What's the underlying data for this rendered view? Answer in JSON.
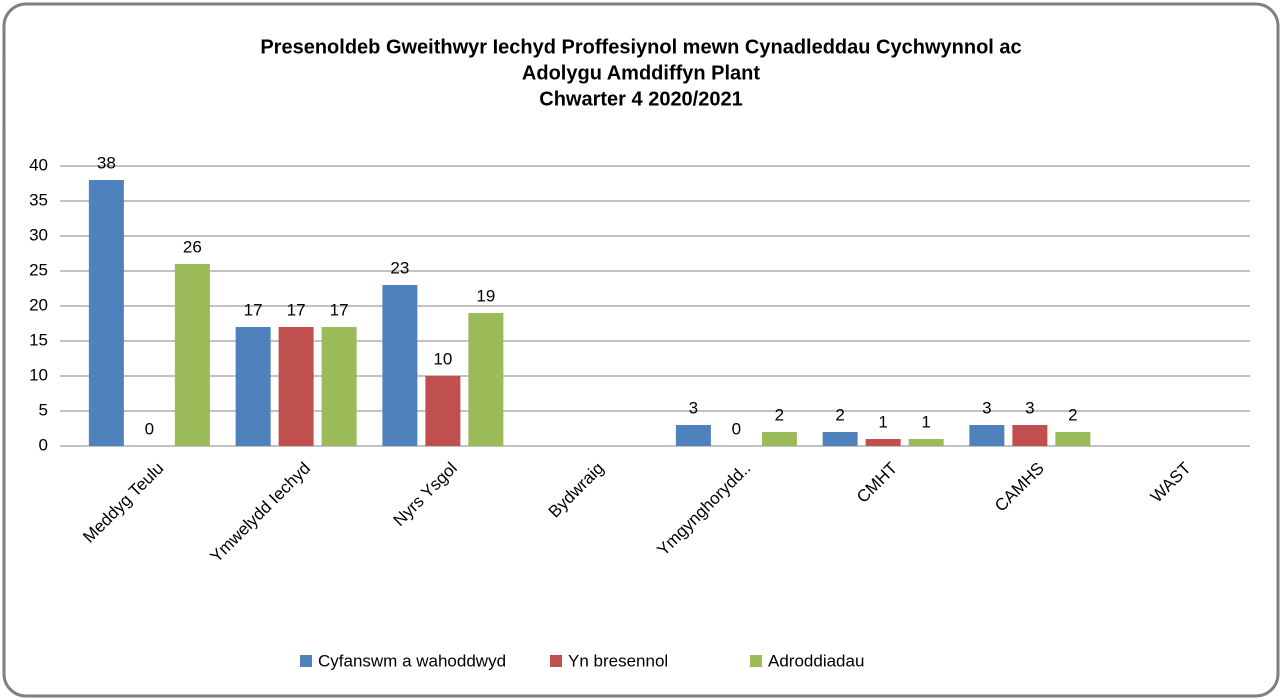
{
  "chart_data": {
    "type": "bar",
    "title": [
      "Presenoldeb Gweithwyr Iechyd Proffesiynol mewn Cynadleddau Cychwynnol ac",
      "Adolygu  Amddiffyn Plant",
      "Chwarter 4   2020/2021"
    ],
    "categories": [
      "Meddyg Teulu",
      "Ymwelydd Iechyd",
      "Nyrs Ysgol",
      "Bydwraig",
      "Ymgynghorydd..",
      "CMHT",
      "CAMHS",
      "WAST"
    ],
    "series": [
      {
        "name": "Cyfanswm a wahoddwyd",
        "color": "#4f81bd",
        "values": [
          38,
          17,
          23,
          null,
          3,
          2,
          3,
          null
        ]
      },
      {
        "name": "Yn bresennol",
        "color": "#c0504d",
        "values": [
          0,
          17,
          10,
          null,
          0,
          1,
          3,
          null
        ]
      },
      {
        "name": "Adroddiadau",
        "color": "#9bbb59",
        "values": [
          26,
          17,
          19,
          null,
          2,
          1,
          2,
          null
        ]
      }
    ],
    "ylim": [
      0,
      40
    ],
    "yticks": [
      0,
      5,
      10,
      15,
      20,
      25,
      30,
      35,
      40
    ],
    "grid": true,
    "legend": "bottom"
  }
}
